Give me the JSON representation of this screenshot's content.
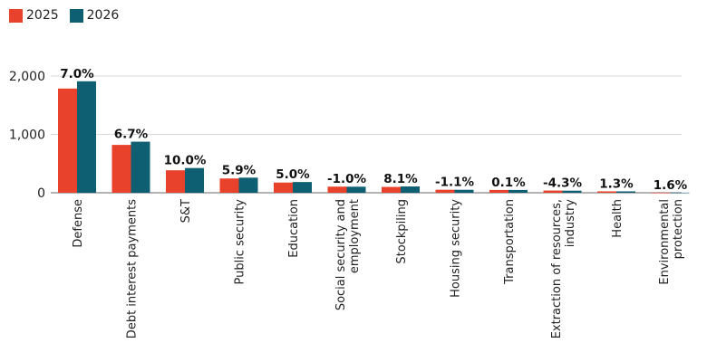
{
  "chart_data": {
    "type": "bar",
    "title": "",
    "xlabel": "",
    "ylabel": "",
    "ylim": [
      0,
      2000
    ],
    "yticks": [
      0,
      1000,
      2000
    ],
    "ytick_labels": [
      "0",
      "1,000",
      "2,000"
    ],
    "grid": true,
    "legend_position": "top-left",
    "categories": [
      "Defense",
      "Debt interest payments",
      "S&T",
      "Public security",
      "Education",
      "Social security and employment",
      "Stockpiling",
      "Housing security",
      "Transportation",
      "Extraction of resources, industry",
      "Health",
      "Environmental protection"
    ],
    "category_lines": [
      [
        "Defense"
      ],
      [
        "Debt interest payments"
      ],
      [
        "S&T"
      ],
      [
        "Public security"
      ],
      [
        "Education"
      ],
      [
        "Social security and",
        "employment"
      ],
      [
        "Stockpiling"
      ],
      [
        "Housing security"
      ],
      [
        "Transportation"
      ],
      [
        "Extraction of resources,",
        "industry"
      ],
      [
        "Health"
      ],
      [
        "Environmental",
        "protection"
      ]
    ],
    "series": [
      {
        "name": "2025",
        "color": "#e8412c",
        "values": [
          1785,
          820,
          385,
          245,
          175,
          105,
          100,
          52,
          48,
          38,
          24,
          2
        ]
      },
      {
        "name": "2026",
        "color": "#0f5f73",
        "values": [
          1910,
          875,
          424,
          259,
          184,
          104,
          108,
          51,
          48,
          36,
          24,
          2
        ]
      }
    ],
    "annotations": [
      "7.0%",
      "6.7%",
      "10.0%",
      "5.9%",
      "5.0%",
      "-1.0%",
      "8.1%",
      "-1.1%",
      "0.1%",
      "-4.3%",
      "1.3%",
      "1.6%"
    ]
  }
}
